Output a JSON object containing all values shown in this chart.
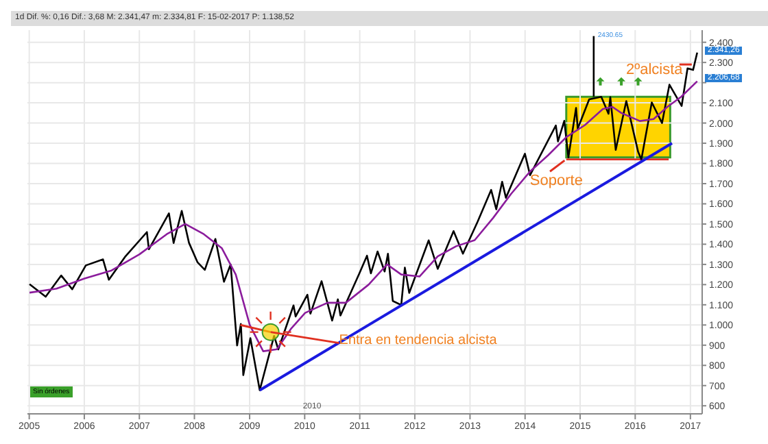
{
  "chart_data": {
    "type": "line",
    "subtitle": "1d Dif. %: 0,16 Dif.: 3,68 M: 2.341,47 m: 2.334,81 F: 15-02-2017 P: 1.138,52",
    "xlim": [
      "2004-12-20",
      "2017-03-20"
    ],
    "xticks": [
      "2005",
      "2006",
      "2007",
      "2008",
      "2009",
      "2010",
      "2011",
      "2012",
      "2013",
      "2014",
      "2015",
      "2016",
      "2017"
    ],
    "ylim": [
      560,
      2460
    ],
    "yticks": [
      600,
      700,
      800,
      900,
      {
        "value": 1000,
        "label": "1.000"
      },
      {
        "value": 1100,
        "label": "1.100"
      },
      {
        "value": 1200,
        "label": "1.200"
      },
      {
        "value": 1300,
        "label": "1.300"
      },
      {
        "value": 1400,
        "label": "1.400"
      },
      {
        "value": 1500,
        "label": "1.500"
      },
      {
        "value": 1600,
        "label": "1.600"
      },
      {
        "value": 1700,
        "label": "1.700"
      },
      {
        "value": 1800,
        "label": "1.800"
      },
      {
        "value": 1900,
        "label": "1.900"
      },
      {
        "value": 2000,
        "label": "2.000"
      },
      {
        "value": 2100,
        "label": "2.100"
      },
      {
        "value": 2200,
        "label": null
      },
      {
        "value": 2300,
        "label": "2.300"
      },
      {
        "value": 2400,
        "label": "2.400"
      }
    ],
    "grid": true,
    "series": [
      {
        "color": "#e03020",
        "x": [
          "2014-10-01",
          "2016-08-10"
        ],
        "values": [
          1820,
          1820
        ]
      },
      {
        "color": "#000000",
        "x": [
          "2005-01-03",
          "2005-04-20",
          "2005-08-01",
          "2005-10-13",
          "2006-01-11",
          "2006-05-05",
          "2006-06-13",
          "2006-10-01",
          "2007-02-20",
          "2007-03-05",
          "2007-07-16",
          "2007-08-16",
          "2007-10-09",
          "2007-11-26",
          "2008-01-22",
          "2008-03-10",
          "2008-05-19",
          "2008-07-15",
          "2008-08-28",
          "2008-10-10",
          "2008-11-04",
          "2008-11-20",
          "2009-01-06",
          "2009-03-09",
          "2009-06-12",
          "2009-07-10",
          "2009-10-19",
          "2009-11-02",
          "2010-01-19",
          "2010-02-08",
          "2010-04-23",
          "2010-07-02",
          "2010-08-09",
          "2010-08-26",
          "2010-12-31",
          "2011-02-18",
          "2011-03-16",
          "2011-04-29",
          "2011-06-15",
          "2011-07-07",
          "2011-08-08",
          "2011-10-03",
          "2011-10-27",
          "2011-11-25",
          "2012-04-02",
          "2012-06-01",
          "2012-09-14",
          "2012-11-15",
          "2013-02-20",
          "2013-05-21",
          "2013-06-24",
          "2013-08-02",
          "2013-08-27",
          "2013-12-31",
          "2014-02-03",
          "2014-07-24",
          "2014-08-07",
          "2014-09-18",
          "2014-10-15",
          "2014-12-05",
          "2014-12-16",
          "2015-03-02",
          "2015-05-21",
          "2015-07-08",
          "2015-07-20",
          "2015-08-25",
          "2015-11-03",
          "2016-01-20",
          "2016-02-11",
          "2016-04-20",
          "2016-06-27",
          "2016-08-15",
          "2016-11-04",
          "2016-12-13",
          "2017-01-19",
          "2017-02-15"
        ],
        "values": [
          1202,
          1140,
          1245,
          1177,
          1295,
          1325,
          1224,
          1340,
          1460,
          1375,
          1553,
          1406,
          1565,
          1407,
          1310,
          1273,
          1426,
          1214,
          1300,
          899,
          1005,
          752,
          935,
          677,
          946,
          879,
          1097,
          1042,
          1150,
          1056,
          1217,
          1022,
          1127,
          1047,
          1258,
          1343,
          1256,
          1364,
          1265,
          1353,
          1119,
          1099,
          1284,
          1159,
          1419,
          1278,
          1465,
          1353,
          1511,
          1669,
          1573,
          1709,
          1630,
          1848,
          1742,
          1988,
          1909,
          2011,
          1830,
          2075,
          1972,
          2117,
          2130,
          2046,
          2128,
          1867,
          2109,
          1859,
          1820,
          2102,
          2000,
          2190,
          2085,
          2271,
          2263,
          2349
        ]
      },
      {
        "color": "#8b1c9c",
        "x": [
          "2005-01-03",
          "2005-07-01",
          "2006-01-02",
          "2006-07-01",
          "2007-01-02",
          "2007-07-02",
          "2007-11-01",
          "2008-03-03",
          "2008-07-01",
          "2008-10-01",
          "2009-01-02",
          "2009-04-01",
          "2009-07-01",
          "2009-10-01",
          "2010-01-04",
          "2010-06-01",
          "2010-10-01",
          "2011-03-01",
          "2011-07-01",
          "2011-10-03",
          "2012-02-01",
          "2012-06-01",
          "2012-10-01",
          "2013-02-01",
          "2013-06-03",
          "2013-10-01",
          "2014-02-03",
          "2014-06-02",
          "2014-10-01",
          "2015-02-02",
          "2015-06-01",
          "2015-08-03",
          "2015-10-01",
          "2016-02-01",
          "2016-05-02",
          "2016-08-01",
          "2016-11-01",
          "2017-02-15"
        ],
        "values": [
          1160,
          1180,
          1230,
          1270,
          1350,
          1450,
          1500,
          1450,
          1380,
          1250,
          1000,
          870,
          880,
          980,
          1060,
          1110,
          1110,
          1200,
          1300,
          1250,
          1240,
          1340,
          1390,
          1420,
          1530,
          1650,
          1760,
          1840,
          1930,
          1990,
          2070,
          2080,
          2050,
          2010,
          2020,
          2080,
          2130,
          2207
        ]
      },
      {
        "color": "#1a1adf",
        "x": [
          "2009-03-09",
          "2016-09-01"
        ],
        "values": [
          677,
          1900
        ]
      },
      {
        "color": "#000000",
        "x": [
          "2015-04-01",
          "2015-04-01"
        ],
        "values": [
          2130,
          2430.65
        ]
      }
    ],
    "annotations": [
      {
        "text": "Soporte",
        "x": "2014-10-15",
        "y": 1820
      },
      {
        "text": "2430.65",
        "x": "2015-04-01",
        "y": 2430.65
      },
      {
        "text": "2.341,26",
        "x": "2017-02-15",
        "y": 2341.26
      },
      {
        "text": "2.206,68",
        "x": "2017-02-15",
        "y": 2206.68
      },
      {
        "text": "Entra en tendencia alcista",
        "x": "2009-05-20",
        "y": 965
      },
      "2ºalcista",
      "Sin órdenes",
      "2010"
    ]
  }
}
